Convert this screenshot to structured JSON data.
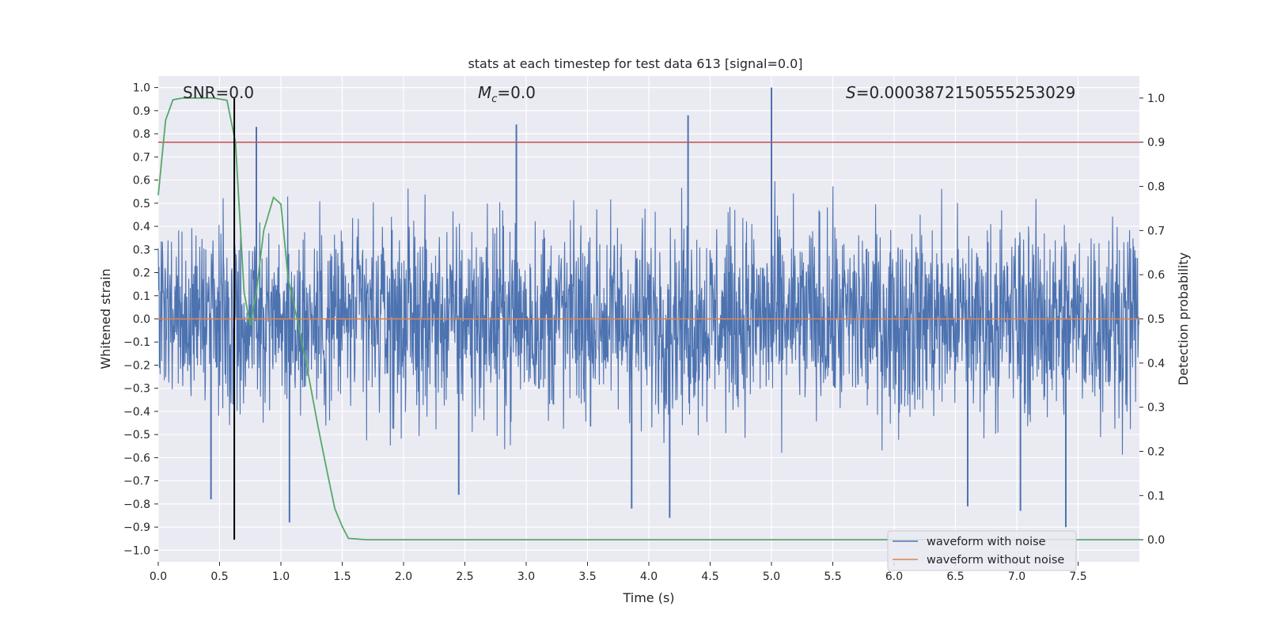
{
  "chart_data": {
    "type": "line",
    "title": "stats at each timestep for test data 613 [signal=0.0]",
    "xlabel": "Time (s)",
    "ylabel_left": "Whitened strain",
    "ylabel_right": "Detection probability",
    "xlim": [
      0.0,
      8.0
    ],
    "ylim_left": [
      -1.05,
      1.05
    ],
    "ylim_right": [
      -0.05,
      1.05
    ],
    "x_ticks": [
      "0.0",
      "0.5",
      "1.0",
      "1.5",
      "2.0",
      "2.5",
      "3.0",
      "3.5",
      "4.0",
      "4.5",
      "5.0",
      "5.5",
      "6.0",
      "6.5",
      "7.0",
      "7.5"
    ],
    "y_ticks_left": [
      "1.0",
      "0.9",
      "0.8",
      "0.7",
      "0.6",
      "0.5",
      "0.4",
      "0.3",
      "0.2",
      "0.1",
      "0.0",
      "−0.1",
      "−0.2",
      "−0.3",
      "−0.4",
      "−0.5",
      "−0.6",
      "−0.7",
      "−0.8",
      "−0.9",
      "−1.0"
    ],
    "y_ticks_right": [
      "1.0",
      "0.9",
      "0.8",
      "0.7",
      "0.6",
      "0.5",
      "0.4",
      "0.3",
      "0.2",
      "0.1",
      "0.0"
    ],
    "grid": true,
    "legend_position": "lower right",
    "annotations": {
      "snr": "SNR=0.0",
      "mc_symbol": "M",
      "mc_sub": "c",
      "mc_value": "=0.0",
      "s_symbol": "S",
      "s_value": "=0.0003872150555253029"
    },
    "series": [
      {
        "name": "waveform with noise",
        "color": "#4c72b0",
        "axis": "left",
        "description": "whitened noisy strain, dense noise between roughly -0.4 and 0.45",
        "envelope": [
          -0.4,
          0.45
        ],
        "notable_peaks": [
          {
            "x": 0.8,
            "y": 0.83
          },
          {
            "x": 2.92,
            "y": 0.84
          },
          {
            "x": 4.32,
            "y": 0.88
          },
          {
            "x": 5.0,
            "y": 1.0
          },
          {
            "x": 1.07,
            "y": -0.88
          },
          {
            "x": 3.86,
            "y": -0.82
          },
          {
            "x": 4.17,
            "y": -0.86
          },
          {
            "x": 6.6,
            "y": -0.81
          },
          {
            "x": 7.03,
            "y": -0.83
          },
          {
            "x": 7.4,
            "y": -0.9
          },
          {
            "x": 2.45,
            "y": -0.76
          },
          {
            "x": 0.43,
            "y": -0.78
          }
        ]
      },
      {
        "name": "waveform without noise",
        "color": "#dd8452",
        "axis": "left",
        "x": [
          0.0,
          8.0
        ],
        "y": [
          0.0,
          0.0
        ]
      },
      {
        "name": "detection probability",
        "color": "#55a868",
        "axis": "right",
        "x": [
          0.0,
          0.06,
          0.12,
          0.2,
          0.3,
          0.45,
          0.56,
          0.63,
          0.7,
          0.75,
          0.8,
          0.86,
          0.94,
          1.0,
          1.06,
          1.14,
          1.22,
          1.3,
          1.38,
          1.44,
          1.5,
          1.55,
          1.7,
          8.0
        ],
        "y": [
          0.78,
          0.95,
          0.996,
          1.0,
          1.0,
          1.0,
          0.995,
          0.9,
          0.56,
          0.485,
          0.56,
          0.7,
          0.775,
          0.76,
          0.59,
          0.49,
          0.38,
          0.26,
          0.15,
          0.07,
          0.03,
          0.003,
          0.0,
          0.0
        ]
      }
    ],
    "threshold_line": {
      "axis": "right",
      "value": 0.9,
      "color": "#c44e52"
    },
    "marker_line": {
      "x": 0.62,
      "y_range_right": [
        0.0,
        1.0
      ],
      "color": "#000000"
    }
  }
}
